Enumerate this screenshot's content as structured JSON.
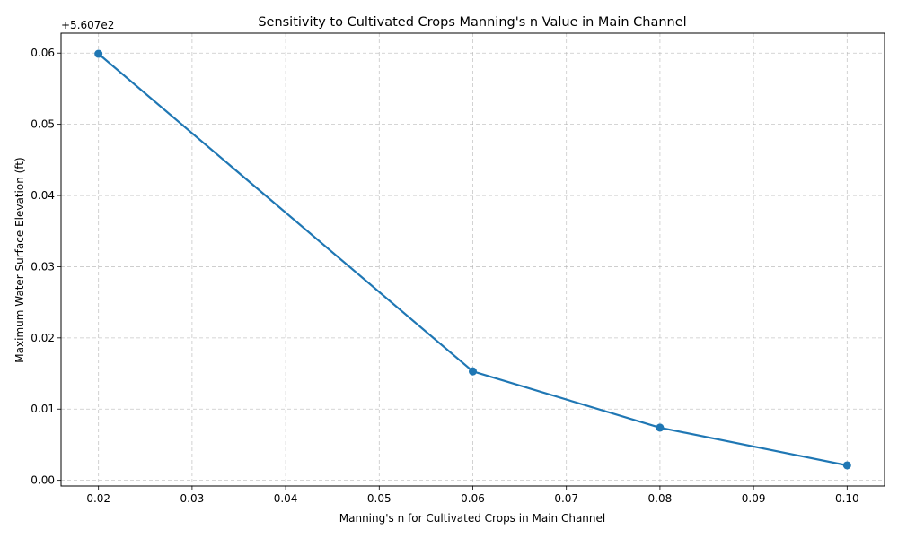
{
  "chart_data": {
    "type": "line",
    "title": "Sensitivity to Cultivated Crops Manning's n Value in Main Channel",
    "xlabel": "Manning's n for Cultivated Crops in Main Channel",
    "ylabel": "Maximum Water Surface Elevation (ft)",
    "y_offset_label": "+5.607e2",
    "xlim": [
      0.016,
      0.104
    ],
    "ylim": [
      -0.0008,
      0.0628
    ],
    "x_ticks": [
      0.02,
      0.03,
      0.04,
      0.05,
      0.06,
      0.07,
      0.08,
      0.09,
      0.1
    ],
    "x_tick_labels": [
      "0.02",
      "0.03",
      "0.04",
      "0.05",
      "0.06",
      "0.07",
      "0.08",
      "0.09",
      "0.10"
    ],
    "y_ticks": [
      0.0,
      0.01,
      0.02,
      0.03,
      0.04,
      0.05,
      0.06
    ],
    "y_tick_labels": [
      "0.00",
      "0.01",
      "0.02",
      "0.03",
      "0.04",
      "0.05",
      "0.06"
    ],
    "grid": true,
    "series": [
      {
        "x": [
          0.02,
          0.06,
          0.08,
          0.1
        ],
        "values": [
          0.0599,
          0.0153,
          0.0074,
          0.0021
        ],
        "color": "#1f77b4"
      }
    ]
  }
}
